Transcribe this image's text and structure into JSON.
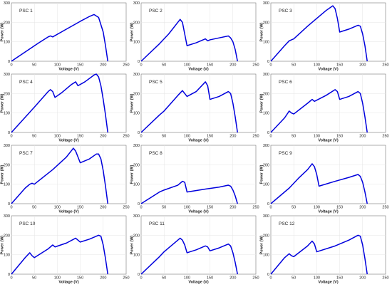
{
  "chart_data": [
    {
      "type": "line",
      "title": "PSC 1",
      "xlabel": "Voltage (V)",
      "ylabel": "Power (W)",
      "xlim": [
        0,
        250
      ],
      "ylim": [
        0,
        300
      ],
      "xticks": [
        0,
        50,
        100,
        150,
        200,
        250
      ],
      "yticks": [
        0,
        100,
        200,
        300
      ],
      "grid": true,
      "color": "#0000dd",
      "series": [
        {
          "x": [
            0,
            60,
            80,
            85,
            90,
            120,
            150,
            170,
            180,
            190,
            200,
            205,
            210
          ],
          "y": [
            0,
            95,
            125,
            130,
            125,
            165,
            205,
            230,
            240,
            225,
            150,
            80,
            0
          ]
        }
      ]
    },
    {
      "type": "line",
      "title": "PSC 2",
      "xlabel": "Voltage (V)",
      "ylabel": "Power (W)",
      "xlim": [
        0,
        250
      ],
      "ylim": [
        0,
        300
      ],
      "xticks": [
        0,
        50,
        100,
        150,
        200,
        250
      ],
      "yticks": [
        0,
        100,
        200,
        300
      ],
      "grid": true,
      "color": "#0000dd",
      "series": [
        {
          "x": [
            0,
            40,
            60,
            80,
            85,
            90,
            95,
            100,
            120,
            140,
            145,
            150,
            170,
            190,
            195,
            200,
            205,
            210
          ],
          "y": [
            0,
            90,
            140,
            200,
            215,
            200,
            140,
            80,
            95,
            115,
            105,
            110,
            120,
            130,
            120,
            100,
            60,
            0
          ]
        }
      ]
    },
    {
      "type": "line",
      "title": "PSC 3",
      "xlabel": "Voltage (V)",
      "ylabel": "Power (W)",
      "xlim": [
        0,
        250
      ],
      "ylim": [
        0,
        300
      ],
      "xticks": [
        0,
        50,
        100,
        150,
        200,
        250
      ],
      "yticks": [
        0,
        100,
        200,
        300
      ],
      "grid": true,
      "color": "#0000dd",
      "series": [
        {
          "x": [
            0,
            30,
            40,
            45,
            50,
            80,
            90,
            120,
            135,
            140,
            145,
            150,
            170,
            190,
            195,
            200,
            205,
            210
          ],
          "y": [
            0,
            80,
            105,
            110,
            115,
            180,
            200,
            260,
            285,
            270,
            220,
            150,
            165,
            185,
            180,
            140,
            80,
            0
          ]
        }
      ]
    },
    {
      "type": "line",
      "title": "PSC 4",
      "xlabel": "Voltage (V)",
      "ylabel": "Power (W)",
      "xlim": [
        0,
        250
      ],
      "ylim": [
        0,
        300
      ],
      "xticks": [
        0,
        50,
        100,
        150,
        200,
        250
      ],
      "yticks": [
        0,
        100,
        200,
        300
      ],
      "grid": true,
      "color": "#0000dd",
      "series": [
        {
          "x": [
            0,
            50,
            80,
            85,
            90,
            95,
            110,
            130,
            140,
            145,
            160,
            180,
            185,
            190,
            195,
            200,
            205,
            210
          ],
          "y": [
            0,
            130,
            210,
            220,
            210,
            180,
            205,
            245,
            260,
            240,
            260,
            295,
            300,
            285,
            240,
            170,
            90,
            0
          ]
        }
      ]
    },
    {
      "type": "line",
      "title": "PSC 5",
      "xlabel": "Voltage (V)",
      "ylabel": "Power (W)",
      "xlim": [
        0,
        250
      ],
      "ylim": [
        0,
        300
      ],
      "xticks": [
        0,
        50,
        100,
        150,
        200,
        250
      ],
      "yticks": [
        0,
        100,
        200,
        300
      ],
      "grid": true,
      "color": "#0000dd",
      "series": [
        {
          "x": [
            0,
            40,
            50,
            80,
            90,
            95,
            100,
            120,
            140,
            145,
            150,
            170,
            190,
            195,
            200,
            205,
            210
          ],
          "y": [
            0,
            90,
            110,
            190,
            215,
            200,
            185,
            210,
            260,
            240,
            170,
            185,
            210,
            200,
            150,
            80,
            0
          ]
        }
      ]
    },
    {
      "type": "line",
      "title": "PSC 6",
      "xlabel": "Voltage (V)",
      "ylabel": "Power (W)",
      "xlim": [
        0,
        250
      ],
      "ylim": [
        0,
        300
      ],
      "xticks": [
        0,
        50,
        100,
        150,
        200,
        250
      ],
      "yticks": [
        0,
        100,
        200,
        300
      ],
      "grid": true,
      "color": "#0000dd",
      "series": [
        {
          "x": [
            0,
            30,
            40,
            45,
            50,
            80,
            90,
            95,
            120,
            140,
            145,
            150,
            170,
            190,
            195,
            200,
            205,
            210
          ],
          "y": [
            0,
            75,
            110,
            100,
            95,
            150,
            170,
            160,
            190,
            220,
            210,
            170,
            185,
            210,
            200,
            150,
            80,
            0
          ]
        }
      ]
    },
    {
      "type": "line",
      "title": "PSC 7",
      "xlabel": "Voltage (V)",
      "ylabel": "Power (W)",
      "xlim": [
        0,
        250
      ],
      "ylim": [
        0,
        300
      ],
      "xticks": [
        0,
        50,
        100,
        150,
        200,
        250
      ],
      "yticks": [
        0,
        100,
        200,
        300
      ],
      "grid": true,
      "color": "#0000dd",
      "series": [
        {
          "x": [
            0,
            30,
            40,
            45,
            50,
            90,
            120,
            130,
            135,
            140,
            145,
            150,
            170,
            185,
            190,
            195,
            200,
            205,
            210
          ],
          "y": [
            0,
            80,
            100,
            105,
            100,
            175,
            240,
            270,
            285,
            270,
            240,
            210,
            230,
            255,
            255,
            230,
            170,
            90,
            0
          ]
        }
      ]
    },
    {
      "type": "line",
      "title": "PSC 8",
      "xlabel": "Voltage (V)",
      "ylabel": "Power (W)",
      "xlim": [
        0,
        250
      ],
      "ylim": [
        0,
        300
      ],
      "xticks": [
        0,
        50,
        100,
        150,
        200,
        250
      ],
      "yticks": [
        0,
        100,
        200,
        300
      ],
      "grid": true,
      "color": "#0000dd",
      "series": [
        {
          "x": [
            0,
            30,
            40,
            45,
            50,
            80,
            90,
            95,
            100,
            140,
            170,
            190,
            195,
            200,
            205,
            210
          ],
          "y": [
            0,
            45,
            60,
            65,
            70,
            95,
            115,
            110,
            60,
            75,
            85,
            95,
            90,
            70,
            40,
            0
          ]
        }
      ]
    },
    {
      "type": "line",
      "title": "PSC 9",
      "xlabel": "Voltage (V)",
      "ylabel": "Power (W)",
      "xlim": [
        0,
        250
      ],
      "ylim": [
        0,
        300
      ],
      "xticks": [
        0,
        50,
        100,
        150,
        200,
        250
      ],
      "yticks": [
        0,
        100,
        200,
        300
      ],
      "grid": true,
      "color": "#0000dd",
      "series": [
        {
          "x": [
            0,
            40,
            60,
            80,
            90,
            95,
            100,
            105,
            140,
            170,
            190,
            195,
            200,
            205,
            210
          ],
          "y": [
            0,
            80,
            130,
            175,
            205,
            190,
            150,
            90,
            115,
            135,
            150,
            140,
            110,
            60,
            0
          ]
        }
      ]
    },
    {
      "type": "line",
      "title": "PSC 10",
      "xlabel": "Voltage (V)",
      "ylabel": "Power (W)",
      "xlim": [
        0,
        250
      ],
      "ylim": [
        0,
        300
      ],
      "xticks": [
        0,
        50,
        100,
        150,
        200,
        250
      ],
      "yticks": [
        0,
        100,
        200,
        300
      ],
      "grid": true,
      "color": "#0000dd",
      "series": [
        {
          "x": [
            0,
            30,
            40,
            45,
            50,
            80,
            90,
            95,
            120,
            140,
            145,
            150,
            170,
            190,
            195,
            200,
            205,
            210
          ],
          "y": [
            0,
            85,
            110,
            95,
            85,
            130,
            150,
            140,
            160,
            185,
            175,
            165,
            180,
            200,
            195,
            150,
            80,
            0
          ]
        }
      ]
    },
    {
      "type": "line",
      "title": "PSC 11",
      "xlabel": "Voltage (V)",
      "ylabel": "Power (W)",
      "xlim": [
        0,
        250
      ],
      "ylim": [
        0,
        300
      ],
      "xticks": [
        0,
        50,
        100,
        150,
        200,
        250
      ],
      "yticks": [
        0,
        100,
        200,
        300
      ],
      "grid": true,
      "color": "#0000dd",
      "series": [
        {
          "x": [
            0,
            40,
            50,
            80,
            85,
            90,
            95,
            100,
            120,
            140,
            145,
            150,
            170,
            190,
            195,
            200,
            205,
            210
          ],
          "y": [
            0,
            90,
            115,
            175,
            185,
            175,
            150,
            110,
            125,
            145,
            140,
            120,
            135,
            155,
            145,
            110,
            60,
            0
          ]
        }
      ]
    },
    {
      "type": "line",
      "title": "PSC 12",
      "xlabel": "Voltage (V)",
      "ylabel": "Power (W)",
      "xlim": [
        0,
        250
      ],
      "ylim": [
        0,
        300
      ],
      "xticks": [
        0,
        50,
        100,
        150,
        200,
        250
      ],
      "yticks": [
        0,
        100,
        200,
        300
      ],
      "grid": true,
      "color": "#0000dd",
      "series": [
        {
          "x": [
            0,
            30,
            40,
            45,
            50,
            80,
            90,
            95,
            100,
            140,
            170,
            190,
            195,
            200,
            205,
            210
          ],
          "y": [
            0,
            85,
            105,
            95,
            90,
            145,
            170,
            155,
            115,
            145,
            175,
            200,
            195,
            150,
            80,
            0
          ]
        }
      ]
    }
  ]
}
